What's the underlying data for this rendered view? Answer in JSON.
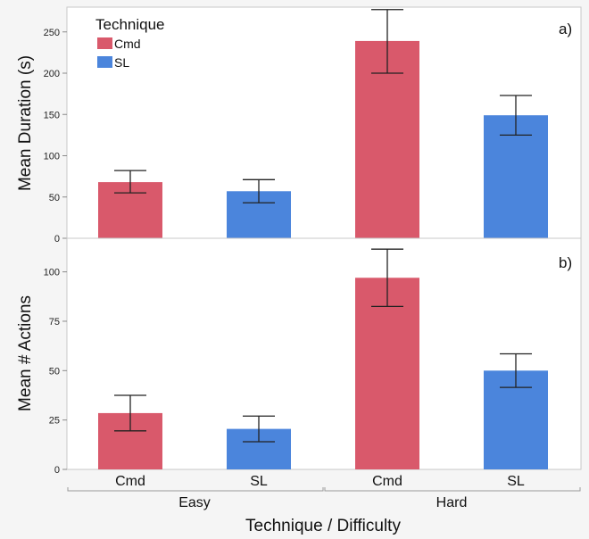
{
  "chart_data": [
    {
      "type": "bar",
      "panel_tag": "a)",
      "ylabel": "Mean Duration (s)",
      "ylim": [
        0,
        280
      ],
      "yticks": [
        0,
        50,
        100,
        150,
        200,
        250
      ],
      "groups": [
        "Easy",
        "Hard"
      ],
      "bars": [
        {
          "group": "Easy",
          "technique": "Cmd",
          "value": 68,
          "err_low": 55,
          "err_high": 82
        },
        {
          "group": "Easy",
          "technique": "SL",
          "value": 57,
          "err_low": 43,
          "err_high": 71
        },
        {
          "group": "Hard",
          "technique": "Cmd",
          "value": 239,
          "err_low": 200,
          "err_high": 277
        },
        {
          "group": "Hard",
          "technique": "SL",
          "value": 149,
          "err_low": 125,
          "err_high": 173
        }
      ]
    },
    {
      "type": "bar",
      "panel_tag": "b)",
      "ylabel": "Mean # Actions",
      "ylim": [
        0,
        117
      ],
      "yticks": [
        0,
        25,
        50,
        75,
        100
      ],
      "groups": [
        "Easy",
        "Hard"
      ],
      "bars": [
        {
          "group": "Easy",
          "technique": "Cmd",
          "value": 28.5,
          "err_low": 19.5,
          "err_high": 37.5
        },
        {
          "group": "Easy",
          "technique": "SL",
          "value": 20.5,
          "err_low": 14,
          "err_high": 27
        },
        {
          "group": "Hard",
          "technique": "Cmd",
          "value": 97,
          "err_low": 82.5,
          "err_high": 111.5
        },
        {
          "group": "Hard",
          "technique": "SL",
          "value": 50,
          "err_low": 41.5,
          "err_high": 58.5
        }
      ]
    }
  ],
  "legend": {
    "title": "Technique",
    "entries": [
      {
        "label": "Cmd",
        "color": "#d9596b"
      },
      {
        "label": "SL",
        "color": "#4b85dc"
      }
    ]
  },
  "x_axis": {
    "title": "Technique / Difficulty",
    "categories": [
      "Cmd",
      "SL",
      "Cmd",
      "SL"
    ],
    "groups": [
      "Easy",
      "Hard"
    ]
  },
  "colors": {
    "Cmd": "#d9596b",
    "SL": "#4b85dc"
  }
}
